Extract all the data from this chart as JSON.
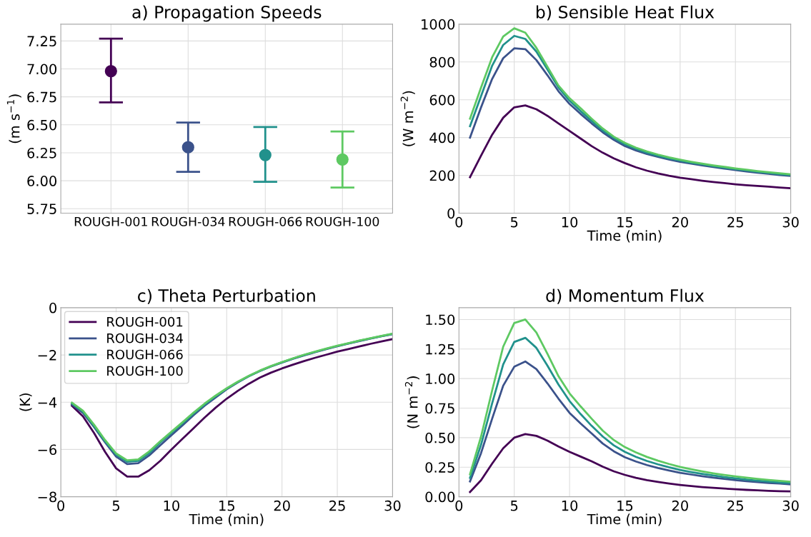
{
  "chart_data": [
    {
      "type": "scatter",
      "title": "a) Propagation Speeds",
      "ylabel": "(m s$^{−1}$)",
      "categories": [
        "ROUGH-001",
        "ROUGH-034",
        "ROUGH-066",
        "ROUGH-100"
      ],
      "values": [
        6.98,
        6.3,
        6.23,
        6.19
      ],
      "errors": [
        [
          6.7,
          7.27
        ],
        [
          6.08,
          6.52
        ],
        [
          5.99,
          6.48
        ],
        [
          5.94,
          6.44
        ]
      ],
      "colors": [
        "#440154",
        "#3b528b",
        "#21918c",
        "#5ec962"
      ],
      "marker": "circle",
      "ylim": [
        5.71,
        7.4
      ],
      "yticks": [
        {
          "value": 5.75,
          "label": "5.75"
        },
        {
          "value": 6.0,
          "label": "6.00"
        },
        {
          "value": 6.25,
          "label": "6.25"
        },
        {
          "value": 6.5,
          "label": "6.50"
        },
        {
          "value": 6.75,
          "label": "6.75"
        },
        {
          "value": 7.0,
          "label": "7.00"
        },
        {
          "value": 7.25,
          "label": "7.25"
        }
      ],
      "grid": true
    },
    {
      "type": "line",
      "title": "b) Sensible Heat Flux",
      "xlabel": "Time (min)",
      "ylabel": "(W m$^{−2}$)",
      "x": [
        1,
        2,
        3,
        4,
        5,
        6,
        7,
        8,
        9,
        10,
        11,
        12,
        13,
        14,
        15,
        16,
        17,
        18,
        19,
        20,
        21,
        22,
        23,
        24,
        25,
        26,
        27,
        28,
        29,
        30
      ],
      "xlim": [
        0,
        30
      ],
      "xticks": [
        0,
        5,
        10,
        15,
        20,
        25,
        30
      ],
      "ylim": [
        0,
        1000
      ],
      "yticks": [
        0,
        200,
        400,
        600,
        800,
        1000
      ],
      "grid": true,
      "series": [
        {
          "color": "#440154",
          "values": [
            190,
            305,
            415,
            505,
            560,
            570,
            550,
            515,
            475,
            435,
            395,
            355,
            320,
            290,
            265,
            243,
            225,
            210,
            198,
            188,
            180,
            172,
            165,
            159,
            153,
            148,
            144,
            140,
            136,
            132
          ]
        },
        {
          "color": "#3b528b",
          "values": [
            400,
            560,
            710,
            820,
            872,
            868,
            810,
            730,
            645,
            578,
            525,
            475,
            428,
            388,
            355,
            332,
            313,
            298,
            284,
            272,
            262,
            253,
            244,
            236,
            228,
            221,
            214,
            208,
            202,
            197
          ]
        },
        {
          "color": "#21918c",
          "values": [
            460,
            620,
            780,
            890,
            938,
            922,
            855,
            760,
            665,
            595,
            540,
            488,
            438,
            398,
            365,
            340,
            320,
            304,
            290,
            278,
            267,
            258,
            249,
            241,
            233,
            226,
            219,
            213,
            207,
            202
          ]
        },
        {
          "color": "#5ec962",
          "values": [
            500,
            665,
            825,
            935,
            978,
            955,
            875,
            775,
            675,
            608,
            555,
            500,
            448,
            405,
            372,
            347,
            327,
            310,
            295,
            283,
            272,
            262,
            253,
            245,
            237,
            230,
            223,
            217,
            211,
            206
          ]
        }
      ]
    },
    {
      "type": "line",
      "title": "c) Theta Perturbation",
      "xlabel": "Time (min)",
      "ylabel": "(K)",
      "x": [
        1,
        2,
        3,
        4,
        5,
        6,
        7,
        8,
        9,
        10,
        11,
        12,
        13,
        14,
        15,
        16,
        17,
        18,
        19,
        20,
        21,
        22,
        23,
        24,
        25,
        26,
        27,
        28,
        29,
        30
      ],
      "xlim": [
        0,
        30
      ],
      "xticks": [
        0,
        5,
        10,
        15,
        20,
        25,
        30
      ],
      "ylim": [
        -8,
        0
      ],
      "yticks": [
        {
          "value": -8,
          "label": "−8"
        },
        {
          "value": -6,
          "label": "−6"
        },
        {
          "value": -4,
          "label": "−4"
        },
        {
          "value": -2,
          "label": "−2"
        },
        0
      ],
      "grid": true,
      "legend": "top left",
      "series": [
        {
          "name": "ROUGH-001",
          "color": "#440154",
          "values": [
            -4.15,
            -4.6,
            -5.3,
            -6.1,
            -6.8,
            -7.15,
            -7.15,
            -6.88,
            -6.48,
            -6.0,
            -5.55,
            -5.1,
            -4.65,
            -4.23,
            -3.85,
            -3.52,
            -3.22,
            -2.96,
            -2.75,
            -2.57,
            -2.41,
            -2.26,
            -2.12,
            -1.99,
            -1.86,
            -1.75,
            -1.64,
            -1.53,
            -1.43,
            -1.33
          ]
        },
        {
          "name": "ROUGH-034",
          "color": "#3b528b",
          "values": [
            -4.1,
            -4.45,
            -5.05,
            -5.7,
            -6.3,
            -6.62,
            -6.58,
            -6.25,
            -5.82,
            -5.4,
            -4.98,
            -4.55,
            -4.15,
            -3.8,
            -3.45,
            -3.16,
            -2.9,
            -2.68,
            -2.49,
            -2.32,
            -2.16,
            -2.02,
            -1.88,
            -1.75,
            -1.63,
            -1.52,
            -1.41,
            -1.31,
            -1.21,
            -1.12
          ]
        },
        {
          "name": "ROUGH-066",
          "color": "#21918c",
          "values": [
            -4.05,
            -4.4,
            -5.0,
            -5.65,
            -6.22,
            -6.52,
            -6.48,
            -6.15,
            -5.7,
            -5.3,
            -4.9,
            -4.48,
            -4.1,
            -3.75,
            -3.43,
            -3.15,
            -2.9,
            -2.68,
            -2.48,
            -2.31,
            -2.15,
            -2.0,
            -1.87,
            -1.74,
            -1.62,
            -1.51,
            -1.4,
            -1.3,
            -1.2,
            -1.11
          ]
        },
        {
          "name": "ROUGH-100",
          "color": "#5ec962",
          "values": [
            -4.02,
            -4.36,
            -4.95,
            -5.6,
            -6.17,
            -6.46,
            -6.42,
            -6.08,
            -5.65,
            -5.25,
            -4.85,
            -4.44,
            -4.06,
            -3.72,
            -3.41,
            -3.13,
            -2.88,
            -2.66,
            -2.47,
            -2.3,
            -2.14,
            -1.99,
            -1.86,
            -1.73,
            -1.61,
            -1.5,
            -1.39,
            -1.29,
            -1.19,
            -1.1
          ]
        }
      ]
    },
    {
      "type": "line",
      "title": "d) Momentum Flux",
      "xlabel": "Time (min)",
      "ylabel": "(N m$^{−2}$)",
      "x": [
        1,
        2,
        3,
        4,
        5,
        6,
        7,
        8,
        9,
        10,
        11,
        12,
        13,
        14,
        15,
        16,
        17,
        18,
        19,
        20,
        21,
        22,
        23,
        24,
        25,
        26,
        27,
        28,
        29,
        30
      ],
      "xlim": [
        0,
        30
      ],
      "xticks": [
        0,
        5,
        10,
        15,
        20,
        25,
        30
      ],
      "ylim": [
        0,
        1.6
      ],
      "yticks": [
        {
          "value": 0,
          "label": "0.00"
        },
        {
          "value": 0.25,
          "label": "0.25"
        },
        {
          "value": 0.5,
          "label": "0.50"
        },
        {
          "value": 0.75,
          "label": "0.75"
        },
        {
          "value": 1.0,
          "label": "1.00"
        },
        {
          "value": 1.25,
          "label": "1.25"
        },
        {
          "value": 1.5,
          "label": "1.50"
        }
      ],
      "grid": true,
      "series": [
        {
          "color": "#440154",
          "values": [
            0.04,
            0.14,
            0.28,
            0.41,
            0.5,
            0.53,
            0.515,
            0.475,
            0.425,
            0.38,
            0.34,
            0.3,
            0.255,
            0.215,
            0.185,
            0.16,
            0.14,
            0.125,
            0.112,
            0.1,
            0.09,
            0.082,
            0.075,
            0.069,
            0.063,
            0.058,
            0.054,
            0.05,
            0.047,
            0.045
          ]
        },
        {
          "color": "#3b528b",
          "values": [
            0.13,
            0.37,
            0.66,
            0.94,
            1.1,
            1.145,
            1.08,
            0.96,
            0.83,
            0.71,
            0.62,
            0.535,
            0.45,
            0.385,
            0.335,
            0.298,
            0.268,
            0.243,
            0.222,
            0.203,
            0.188,
            0.174,
            0.162,
            0.151,
            0.141,
            0.132,
            0.124,
            0.117,
            0.111,
            0.105
          ]
        },
        {
          "color": "#21918c",
          "values": [
            0.16,
            0.44,
            0.79,
            1.12,
            1.31,
            1.345,
            1.26,
            1.11,
            0.95,
            0.81,
            0.7,
            0.6,
            0.51,
            0.435,
            0.38,
            0.338,
            0.303,
            0.274,
            0.249,
            0.227,
            0.209,
            0.193,
            0.179,
            0.166,
            0.155,
            0.145,
            0.136,
            0.128,
            0.121,
            0.115
          ]
        },
        {
          "color": "#5ec962",
          "values": [
            0.19,
            0.51,
            0.9,
            1.27,
            1.47,
            1.5,
            1.39,
            1.21,
            1.02,
            0.875,
            0.765,
            0.66,
            0.56,
            0.48,
            0.42,
            0.375,
            0.337,
            0.305,
            0.277,
            0.252,
            0.232,
            0.214,
            0.198,
            0.184,
            0.172,
            0.161,
            0.151,
            0.142,
            0.134,
            0.127
          ]
        }
      ]
    }
  ]
}
